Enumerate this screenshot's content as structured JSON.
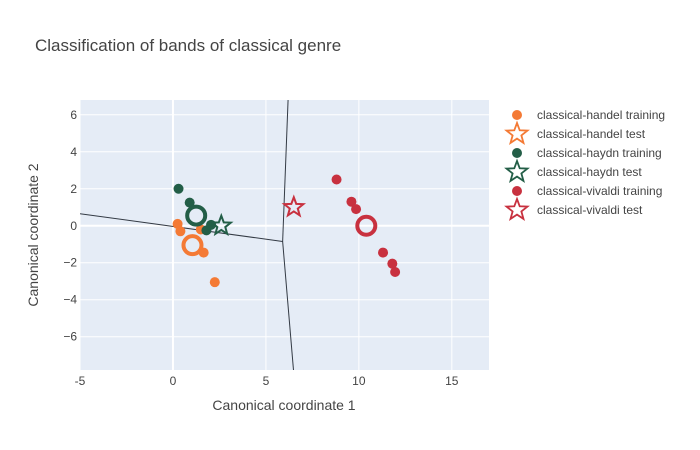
{
  "chart_data": {
    "type": "scatter",
    "title": "Classification of bands of classical genre",
    "xlabel": "Canonical coordinate 1",
    "ylabel": "Canonical coordinate 2",
    "xlim": [
      -5,
      17
    ],
    "ylim": [
      -7.8,
      6.8
    ],
    "xticks": [
      -5,
      0,
      5,
      10,
      15
    ],
    "yticks": [
      -6,
      -4,
      -2,
      0,
      2,
      4,
      6
    ],
    "grid": true,
    "legend_position": "right",
    "series": [
      {
        "name": "classical-handel training",
        "marker": "circle",
        "color": "#F47A35",
        "points": [
          [
            0.25,
            0.1
          ],
          [
            0.4,
            -0.3
          ],
          [
            1.5,
            -0.2
          ],
          [
            1.65,
            -1.45
          ],
          [
            2.25,
            -3.05
          ]
        ]
      },
      {
        "name": "classical-handel test",
        "marker": "star",
        "color": "#F47A35",
        "points": [],
        "centroid": [
          1.05,
          -1.05
        ]
      },
      {
        "name": "classical-haydn training",
        "marker": "circle",
        "color": "#235E47",
        "points": [
          [
            0.3,
            2.0
          ],
          [
            0.9,
            1.25
          ],
          [
            1.8,
            -0.25
          ],
          [
            2.05,
            0.05
          ]
        ],
        "centroid": [
          1.25,
          0.55
        ]
      },
      {
        "name": "classical-haydn test",
        "marker": "star",
        "color": "#235E47",
        "points": [
          [
            2.6,
            0.0
          ]
        ]
      },
      {
        "name": "classical-vivaldi training",
        "marker": "circle",
        "color": "#C8313F",
        "points": [
          [
            8.8,
            2.5
          ],
          [
            9.6,
            1.3
          ],
          [
            9.85,
            0.9
          ],
          [
            11.3,
            -1.45
          ],
          [
            11.8,
            -2.05
          ],
          [
            11.95,
            -2.5
          ]
        ],
        "centroid": [
          10.4,
          0.0
        ]
      },
      {
        "name": "classical-vivaldi test",
        "marker": "star",
        "color": "#C8313F",
        "points": [
          [
            6.5,
            1.0
          ]
        ]
      }
    ],
    "boundaries": [
      [
        [
          -5,
          0.65
        ],
        [
          5.9,
          -0.85
        ]
      ],
      [
        [
          5.9,
          -0.85
        ],
        [
          6.2,
          7.0
        ]
      ],
      [
        [
          5.9,
          -0.85
        ],
        [
          6.5,
          -8.0
        ]
      ]
    ]
  }
}
